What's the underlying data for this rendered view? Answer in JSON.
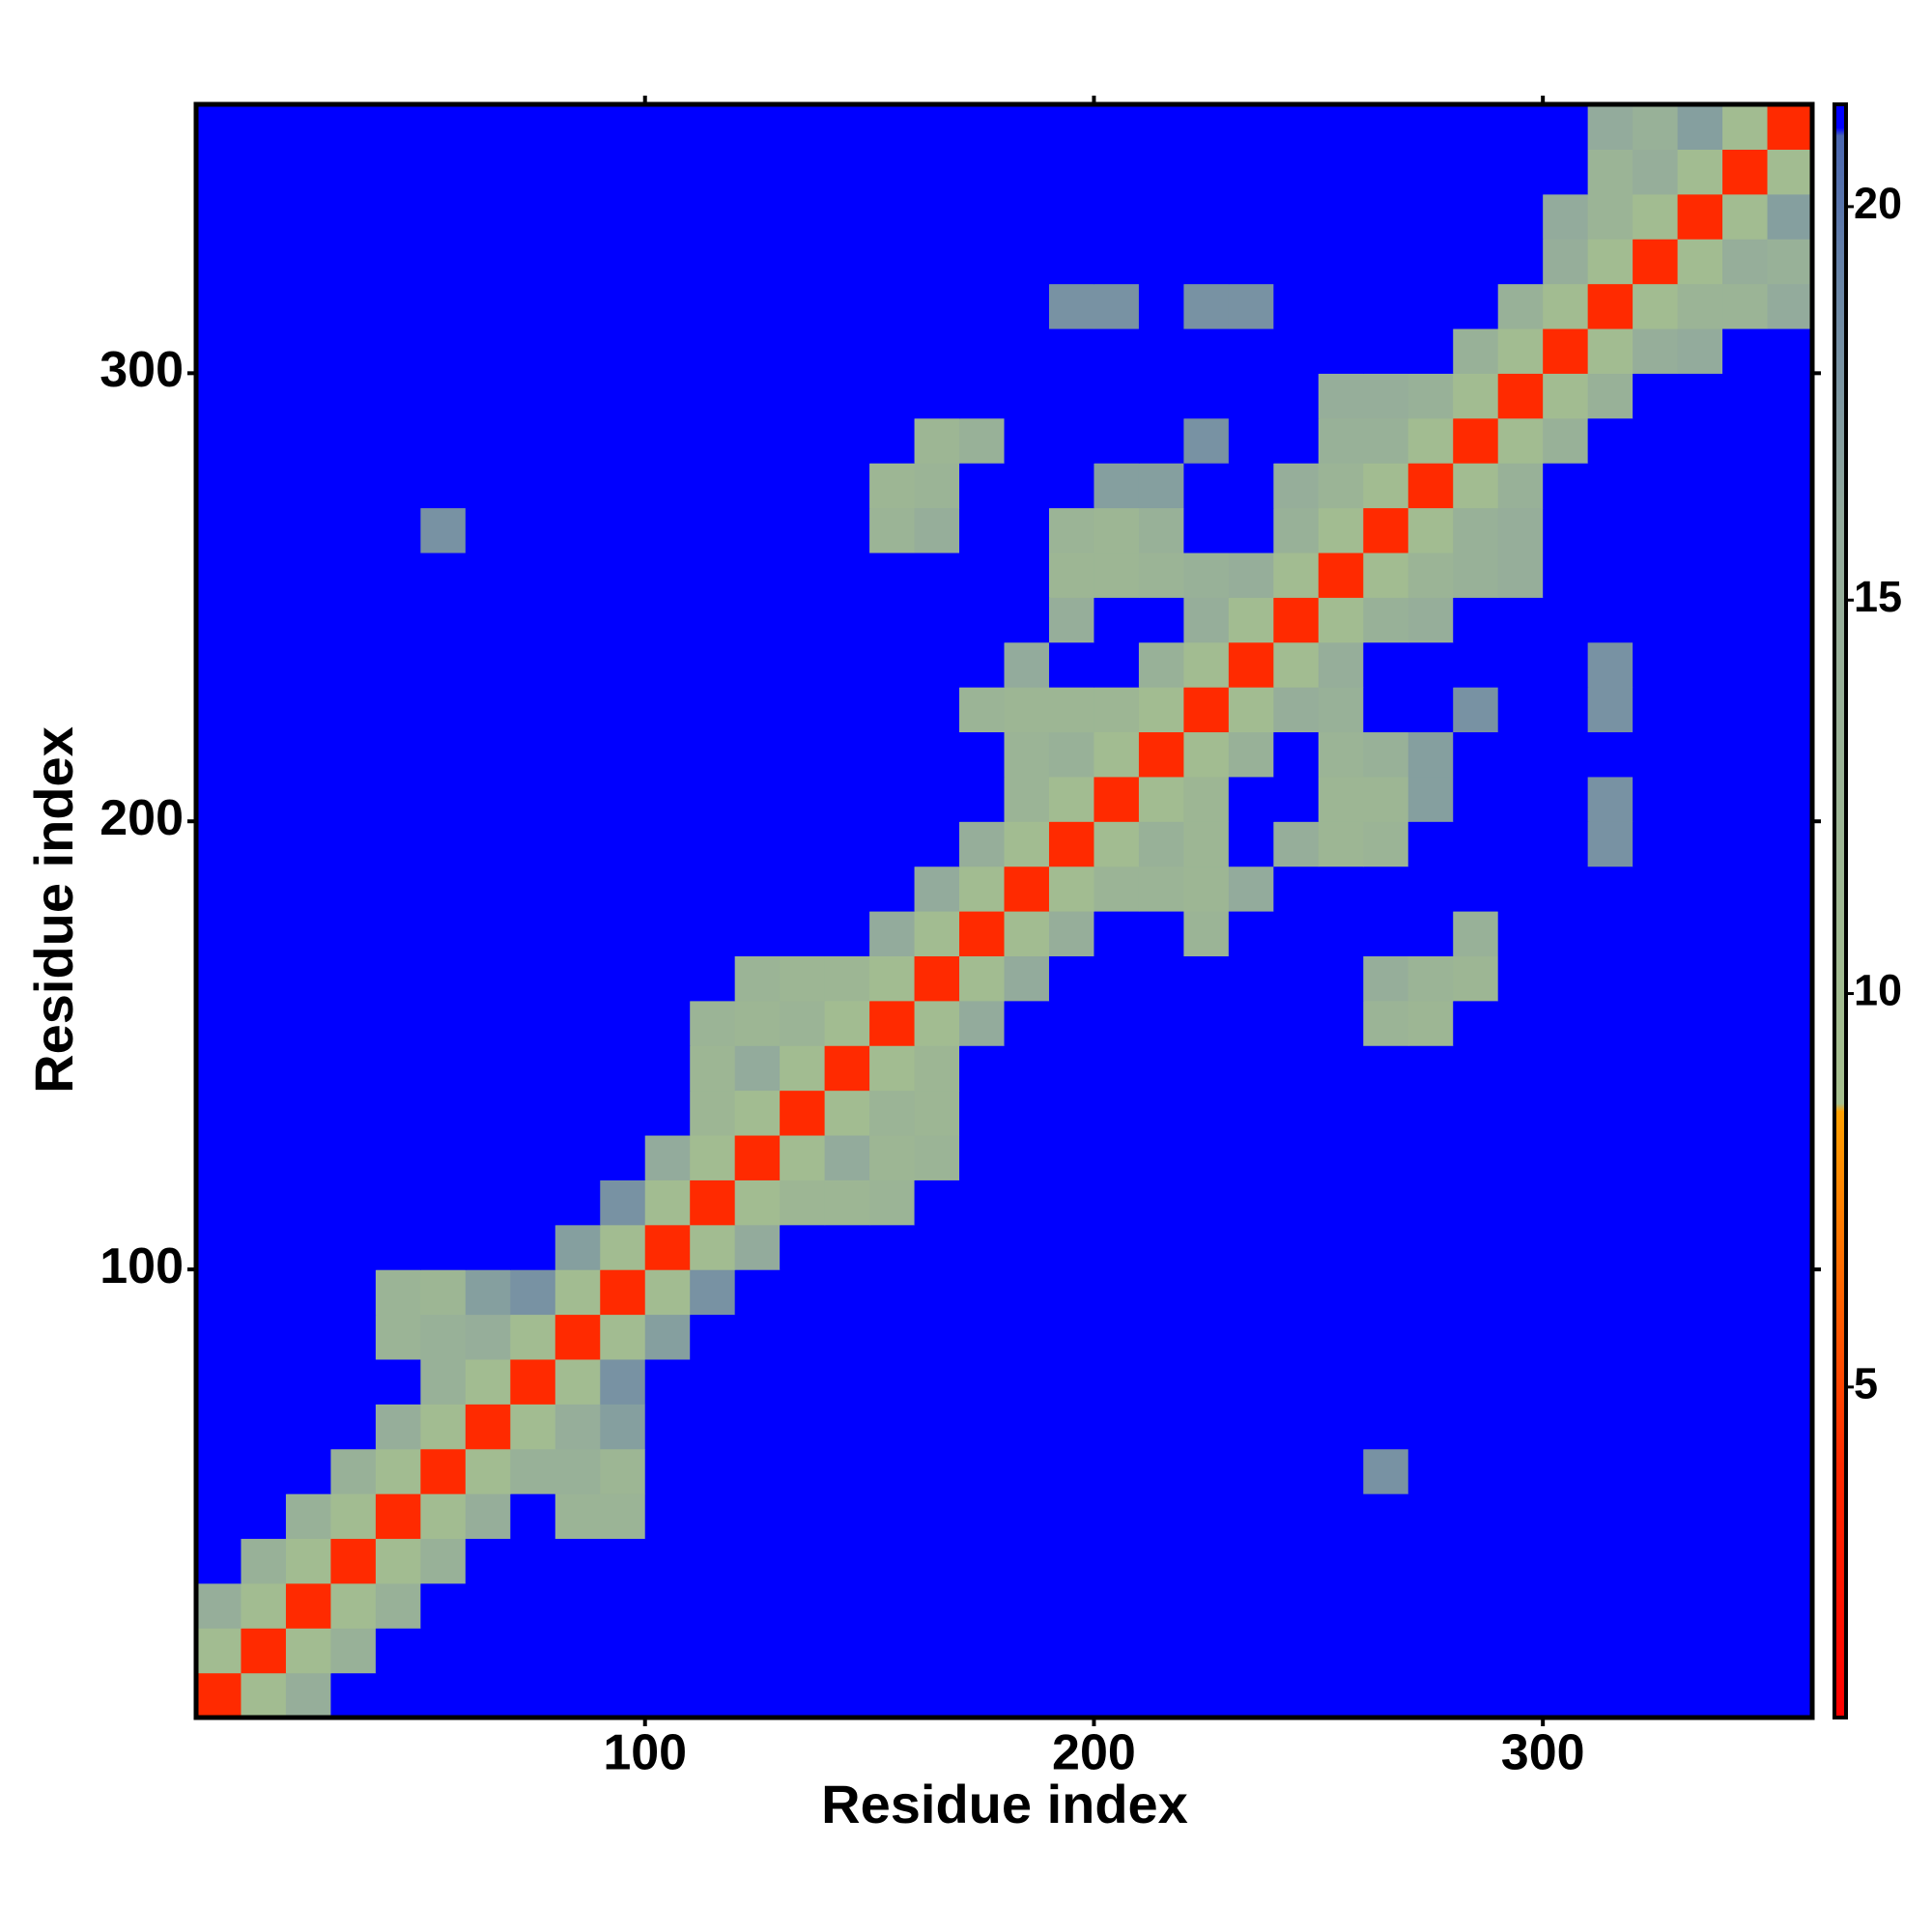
{
  "chart_data": {
    "type": "heatmap",
    "xlabel": "Residue index",
    "ylabel": "Residue index",
    "x": [
      5,
      15,
      25,
      35,
      45,
      55,
      65,
      75,
      85,
      95,
      105,
      115,
      125,
      135,
      145,
      155,
      165,
      175,
      185,
      195,
      205,
      215,
      225,
      235,
      245,
      255,
      265,
      275,
      285,
      295,
      305,
      315,
      325,
      335,
      345,
      355
    ],
    "y": [
      5,
      15,
      25,
      35,
      45,
      55,
      65,
      75,
      85,
      95,
      105,
      115,
      125,
      135,
      145,
      155,
      165,
      175,
      185,
      195,
      205,
      215,
      225,
      235,
      245,
      255,
      265,
      275,
      285,
      295,
      305,
      315,
      325,
      335,
      345,
      355
    ],
    "xlim": [
      0,
      360
    ],
    "ylim": [
      0,
      360
    ],
    "xticks": [
      100,
      200,
      300
    ],
    "yticks": [
      100,
      200,
      300
    ],
    "zlim": [
      0.8,
      21.3
    ],
    "zticks": [
      5,
      10,
      15,
      20
    ],
    "colorscale": [
      [
        0.8,
        "#ff0000"
      ],
      [
        4,
        "#ff2a00"
      ],
      [
        8.5,
        "#ffa000"
      ],
      [
        8.6,
        "#a6c08e"
      ],
      [
        16,
        "#93ab9c"
      ],
      [
        19,
        "#6a86a6"
      ],
      [
        20.9,
        "#4a66b0"
      ],
      [
        21,
        "#0000ff"
      ]
    ],
    "z": [
      [
        4,
        10,
        15,
        21,
        21,
        21,
        21,
        21,
        21,
        21,
        21,
        21,
        21,
        21,
        21,
        21,
        21,
        21,
        21,
        21,
        21,
        21,
        21,
        21,
        21,
        21,
        21,
        21,
        21,
        21,
        21,
        21,
        21,
        21,
        21,
        21
      ],
      [
        10,
        4,
        10,
        14,
        21,
        21,
        21,
        21,
        21,
        21,
        21,
        21,
        21,
        21,
        21,
        21,
        21,
        21,
        21,
        21,
        21,
        21,
        21,
        21,
        21,
        21,
        21,
        21,
        21,
        21,
        21,
        21,
        21,
        21,
        21,
        21
      ],
      [
        15,
        10,
        4,
        10,
        14,
        21,
        21,
        21,
        21,
        21,
        21,
        21,
        21,
        21,
        21,
        21,
        21,
        21,
        21,
        21,
        21,
        21,
        21,
        21,
        21,
        21,
        21,
        21,
        21,
        21,
        21,
        21,
        21,
        21,
        21,
        21
      ],
      [
        21,
        14,
        10,
        4,
        10,
        14,
        21,
        21,
        21,
        21,
        21,
        21,
        21,
        21,
        21,
        21,
        21,
        21,
        21,
        21,
        21,
        21,
        21,
        21,
        21,
        21,
        21,
        21,
        21,
        21,
        21,
        21,
        21,
        21,
        21,
        21
      ],
      [
        21,
        21,
        14,
        10,
        4,
        10,
        15,
        21,
        13,
        13,
        21,
        21,
        21,
        21,
        21,
        21,
        21,
        21,
        21,
        21,
        21,
        21,
        21,
        21,
        21,
        21,
        21,
        21,
        21,
        21,
        21,
        21,
        21,
        21,
        21,
        21
      ],
      [
        21,
        21,
        21,
        14,
        10,
        4,
        10,
        14,
        14,
        12,
        21,
        21,
        21,
        21,
        21,
        21,
        21,
        21,
        21,
        21,
        21,
        21,
        21,
        21,
        21,
        21,
        18,
        21,
        21,
        21,
        21,
        21,
        21,
        21,
        21,
        21
      ],
      [
        21,
        21,
        21,
        21,
        15,
        10,
        4,
        10,
        15,
        17,
        21,
        21,
        21,
        21,
        21,
        21,
        21,
        21,
        21,
        21,
        21,
        21,
        21,
        21,
        21,
        21,
        21,
        21,
        21,
        21,
        21,
        21,
        21,
        21,
        21,
        21
      ],
      [
        21,
        21,
        21,
        21,
        21,
        14,
        10,
        4,
        10,
        18,
        21,
        21,
        21,
        21,
        21,
        21,
        21,
        21,
        21,
        21,
        21,
        21,
        21,
        21,
        21,
        21,
        21,
        21,
        21,
        21,
        21,
        21,
        21,
        21,
        21,
        21
      ],
      [
        21,
        21,
        21,
        21,
        13,
        14,
        15,
        10,
        4,
        10,
        17,
        21,
        21,
        21,
        21,
        21,
        21,
        21,
        21,
        21,
        21,
        21,
        21,
        21,
        21,
        21,
        21,
        21,
        21,
        21,
        21,
        21,
        21,
        21,
        21,
        21
      ],
      [
        21,
        21,
        21,
        21,
        13,
        12,
        17,
        18,
        10,
        4,
        10,
        18,
        21,
        21,
        21,
        21,
        21,
        21,
        21,
        21,
        21,
        21,
        21,
        21,
        21,
        21,
        21,
        21,
        21,
        21,
        21,
        21,
        21,
        21,
        21,
        21
      ],
      [
        21,
        21,
        21,
        21,
        21,
        21,
        21,
        21,
        17,
        10,
        4,
        10,
        16,
        21,
        21,
        21,
        21,
        21,
        21,
        21,
        21,
        21,
        21,
        21,
        21,
        21,
        21,
        21,
        21,
        21,
        21,
        21,
        21,
        21,
        21,
        21
      ],
      [
        21,
        21,
        21,
        21,
        21,
        21,
        21,
        21,
        21,
        18,
        10,
        4,
        10,
        12,
        12,
        13,
        21,
        21,
        21,
        21,
        21,
        21,
        21,
        21,
        21,
        21,
        21,
        21,
        21,
        21,
        21,
        21,
        21,
        21,
        21,
        21
      ],
      [
        21,
        21,
        21,
        21,
        21,
        21,
        21,
        21,
        21,
        21,
        16,
        10,
        4,
        10,
        16,
        12,
        13,
        21,
        21,
        21,
        21,
        21,
        21,
        21,
        21,
        21,
        21,
        21,
        21,
        21,
        21,
        21,
        21,
        21,
        21,
        21
      ],
      [
        21,
        21,
        21,
        21,
        21,
        21,
        21,
        21,
        21,
        21,
        21,
        12,
        10,
        4,
        10,
        13,
        12,
        21,
        21,
        21,
        21,
        21,
        21,
        21,
        21,
        21,
        21,
        21,
        21,
        21,
        21,
        21,
        21,
        21,
        21,
        21
      ],
      [
        21,
        21,
        21,
        21,
        21,
        21,
        21,
        21,
        21,
        21,
        21,
        12,
        16,
        10,
        4,
        10,
        12,
        21,
        21,
        21,
        21,
        21,
        21,
        21,
        21,
        21,
        21,
        21,
        21,
        21,
        21,
        21,
        21,
        21,
        21,
        21
      ],
      [
        21,
        21,
        21,
        21,
        21,
        21,
        21,
        21,
        21,
        21,
        21,
        13,
        12,
        13,
        10,
        4,
        10,
        16,
        21,
        21,
        21,
        21,
        21,
        21,
        21,
        21,
        13,
        12,
        21,
        21,
        21,
        21,
        21,
        21,
        21,
        21
      ],
      [
        21,
        21,
        21,
        21,
        21,
        21,
        21,
        21,
        21,
        21,
        21,
        21,
        13,
        12,
        12,
        10,
        4,
        10,
        16,
        21,
        21,
        21,
        21,
        21,
        21,
        21,
        15,
        13,
        12,
        21,
        21,
        21,
        21,
        21,
        21,
        21
      ],
      [
        21,
        21,
        21,
        21,
        21,
        21,
        21,
        21,
        21,
        21,
        21,
        21,
        21,
        21,
        21,
        16,
        10,
        4,
        10,
        15,
        21,
        21,
        13,
        21,
        21,
        21,
        21,
        21,
        14,
        21,
        21,
        21,
        21,
        21,
        21,
        21
      ],
      [
        21,
        21,
        21,
        21,
        21,
        21,
        21,
        21,
        21,
        21,
        21,
        21,
        21,
        21,
        21,
        21,
        16,
        10,
        4,
        10,
        13,
        13,
        12,
        16,
        21,
        21,
        21,
        21,
        21,
        21,
        21,
        21,
        21,
        21,
        21,
        21
      ],
      [
        21,
        21,
        21,
        21,
        21,
        21,
        21,
        21,
        21,
        21,
        21,
        21,
        21,
        21,
        21,
        21,
        21,
        15,
        10,
        4,
        10,
        14,
        12,
        21,
        15,
        12,
        13,
        21,
        21,
        21,
        21,
        18,
        21,
        21,
        21,
        21
      ],
      [
        21,
        21,
        21,
        21,
        21,
        21,
        21,
        21,
        21,
        21,
        21,
        21,
        21,
        21,
        21,
        21,
        21,
        21,
        13,
        10,
        4,
        10,
        12,
        21,
        21,
        12,
        12,
        17,
        21,
        21,
        21,
        18,
        21,
        21,
        21,
        21
      ],
      [
        21,
        21,
        21,
        21,
        21,
        21,
        21,
        21,
        21,
        21,
        21,
        21,
        21,
        21,
        21,
        21,
        21,
        21,
        13,
        14,
        10,
        4,
        10,
        14,
        21,
        13,
        14,
        17,
        21,
        21,
        21,
        21,
        21,
        21,
        21,
        21
      ],
      [
        21,
        21,
        21,
        21,
        21,
        21,
        21,
        21,
        21,
        21,
        21,
        21,
        21,
        21,
        21,
        21,
        21,
        13,
        12,
        12,
        12,
        10,
        4,
        10,
        15,
        14,
        21,
        21,
        18,
        21,
        21,
        18,
        21,
        21,
        21,
        21
      ],
      [
        21,
        21,
        21,
        21,
        21,
        21,
        21,
        21,
        21,
        21,
        21,
        21,
        21,
        21,
        21,
        21,
        21,
        21,
        16,
        21,
        21,
        14,
        10,
        4,
        10,
        15,
        21,
        21,
        21,
        21,
        21,
        18,
        21,
        21,
        21,
        21
      ],
      [
        21,
        21,
        21,
        21,
        21,
        21,
        21,
        21,
        21,
        21,
        21,
        21,
        21,
        21,
        21,
        21,
        21,
        21,
        21,
        15,
        21,
        21,
        15,
        10,
        4,
        10,
        14,
        15,
        21,
        21,
        21,
        21,
        21,
        21,
        21,
        21
      ],
      [
        21,
        21,
        21,
        21,
        21,
        21,
        21,
        21,
        21,
        21,
        21,
        21,
        21,
        21,
        21,
        21,
        21,
        21,
        21,
        12,
        12,
        13,
        14,
        15,
        10,
        4,
        10,
        13,
        14,
        15,
        21,
        21,
        21,
        21,
        21,
        21
      ],
      [
        21,
        21,
        21,
        21,
        21,
        18,
        21,
        21,
        21,
        21,
        21,
        21,
        21,
        21,
        21,
        13,
        15,
        21,
        21,
        13,
        12,
        14,
        21,
        21,
        14,
        10,
        4,
        10,
        14,
        15,
        21,
        21,
        21,
        21,
        21,
        21
      ],
      [
        21,
        21,
        21,
        21,
        21,
        21,
        21,
        21,
        21,
        21,
        21,
        21,
        21,
        21,
        21,
        12,
        13,
        21,
        21,
        21,
        17,
        17,
        21,
        21,
        15,
        13,
        10,
        4,
        10,
        14,
        21,
        21,
        21,
        21,
        21,
        21
      ],
      [
        21,
        21,
        21,
        21,
        21,
        21,
        21,
        21,
        21,
        21,
        21,
        21,
        21,
        21,
        21,
        21,
        12,
        14,
        21,
        21,
        21,
        21,
        18,
        21,
        21,
        14,
        14,
        10,
        4,
        10,
        14,
        21,
        21,
        21,
        21,
        21
      ],
      [
        21,
        21,
        21,
        21,
        21,
        21,
        21,
        21,
        21,
        21,
        21,
        21,
        21,
        21,
        21,
        21,
        21,
        21,
        21,
        21,
        21,
        21,
        21,
        21,
        21,
        15,
        15,
        14,
        10,
        4,
        10,
        14,
        21,
        21,
        21,
        21
      ],
      [
        21,
        21,
        21,
        21,
        21,
        21,
        21,
        21,
        21,
        21,
        21,
        21,
        21,
        21,
        21,
        21,
        21,
        21,
        21,
        21,
        21,
        21,
        21,
        21,
        21,
        21,
        21,
        21,
        14,
        10,
        4,
        10,
        15,
        16,
        21,
        21
      ],
      [
        21,
        21,
        21,
        21,
        21,
        21,
        21,
        21,
        21,
        21,
        21,
        21,
        21,
        21,
        21,
        21,
        21,
        21,
        21,
        18,
        18,
        21,
        18,
        18,
        21,
        21,
        21,
        21,
        21,
        14,
        10,
        4,
        10,
        13,
        13,
        16
      ],
      [
        21,
        21,
        21,
        21,
        21,
        21,
        21,
        21,
        21,
        21,
        21,
        21,
        21,
        21,
        21,
        21,
        21,
        21,
        21,
        21,
        21,
        21,
        21,
        21,
        21,
        21,
        21,
        21,
        21,
        21,
        15,
        10,
        4,
        10,
        15,
        14
      ],
      [
        21,
        21,
        21,
        21,
        21,
        21,
        21,
        21,
        21,
        21,
        21,
        21,
        21,
        21,
        21,
        21,
        21,
        21,
        21,
        21,
        21,
        21,
        21,
        21,
        21,
        21,
        21,
        21,
        21,
        21,
        16,
        13,
        10,
        4,
        10,
        17
      ],
      [
        21,
        21,
        21,
        21,
        21,
        21,
        21,
        21,
        21,
        21,
        21,
        21,
        21,
        21,
        21,
        21,
        21,
        21,
        21,
        21,
        21,
        21,
        21,
        21,
        21,
        21,
        21,
        21,
        21,
        21,
        21,
        13,
        15,
        10,
        4,
        10
      ],
      [
        21,
        21,
        21,
        21,
        21,
        21,
        21,
        21,
        21,
        21,
        21,
        21,
        21,
        21,
        21,
        21,
        21,
        21,
        21,
        21,
        21,
        21,
        21,
        21,
        21,
        21,
        21,
        21,
        21,
        21,
        21,
        16,
        14,
        17,
        10,
        4
      ]
    ]
  }
}
